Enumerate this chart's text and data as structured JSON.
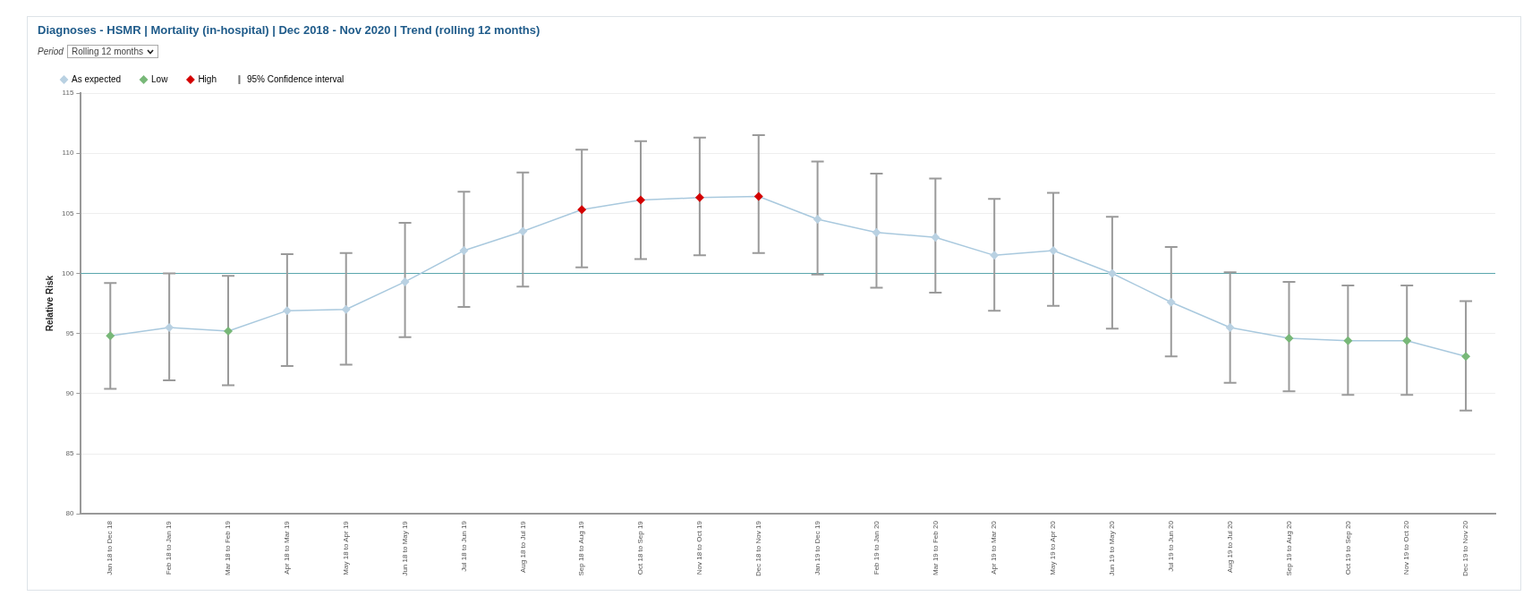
{
  "chart_data": {
    "type": "line",
    "title": "Diagnoses - HSMR | Mortality (in-hospital) | Dec 2018 - Nov 2020 | Trend (rolling 12 months)",
    "ylabel": "Relative Risk",
    "categories": [
      "Jan 18 to Dec 18",
      "Feb 18 to Jan 19",
      "Mar 18 to Feb 19",
      "Apr 18 to Mar 19",
      "May 18 to Apr 19",
      "Jun 18 to May 19",
      "Jul 18 to Jun 19",
      "Aug 18 to Jul 19",
      "Sep 18 to Aug 19",
      "Oct 18 to Sep 19",
      "Nov 18 to Oct 19",
      "Dec 18 to Nov 19",
      "Jan 19 to Dec 19",
      "Feb 19 to Jan 20",
      "Mar 19 to Feb 20",
      "Apr 19 to Mar 20",
      "May 19 to Apr 20",
      "Jun 19 to May 20",
      "Jul 19 to Jun 20",
      "Aug 19 to Jul 20",
      "Sep 19 to Aug 20",
      "Oct 19 to Sep 20",
      "Nov 19 to Oct 20",
      "Dec 19 to Nov 20"
    ],
    "series": [
      {
        "type": "line",
        "color": "#a9c9de",
        "marker": "none",
        "values": [
          94.8,
          95.5,
          95.2,
          96.9,
          97.0,
          99.3,
          101.9,
          103.5,
          105.3,
          106.1,
          106.3,
          106.4,
          104.5,
          103.4,
          103.0,
          101.5,
          101.9,
          100.0,
          97.6,
          95.5,
          94.6,
          94.4,
          94.4,
          93.1
        ],
        "errors": [
          [
            90.4,
            99.2
          ],
          [
            91.1,
            100.0
          ],
          [
            90.7,
            99.8
          ],
          [
            92.3,
            101.6
          ],
          [
            92.4,
            101.7
          ],
          [
            94.7,
            104.2
          ],
          [
            97.2,
            106.8
          ],
          [
            98.9,
            108.4
          ],
          [
            100.5,
            110.3
          ],
          [
            101.2,
            111.0
          ],
          [
            101.5,
            111.3
          ],
          [
            101.7,
            111.5
          ],
          [
            99.9,
            109.3
          ],
          [
            98.8,
            108.3
          ],
          [
            98.4,
            107.9
          ],
          [
            96.9,
            106.2
          ],
          [
            97.3,
            106.7
          ],
          [
            95.4,
            104.7
          ],
          [
            93.1,
            102.2
          ],
          [
            90.9,
            100.1
          ],
          [
            90.2,
            99.3
          ],
          [
            89.9,
            99.0
          ],
          [
            89.9,
            99.0
          ],
          [
            88.6,
            97.7
          ]
        ]
      },
      {
        "name": "As expected",
        "type": "scatter",
        "color": "#b9d1e2",
        "values": [
          null,
          95.5,
          null,
          96.9,
          97.0,
          99.3,
          101.9,
          103.5,
          null,
          null,
          null,
          null,
          104.5,
          103.4,
          103.0,
          101.5,
          101.9,
          100.0,
          97.6,
          95.5,
          null,
          null,
          null,
          null
        ]
      },
      {
        "name": "Low",
        "type": "scatter",
        "color": "#78b878",
        "values": [
          94.8,
          null,
          95.2,
          null,
          null,
          null,
          null,
          null,
          null,
          null,
          null,
          null,
          null,
          null,
          null,
          null,
          null,
          null,
          null,
          null,
          94.6,
          94.4,
          94.4,
          93.1
        ]
      },
      {
        "name": "High",
        "type": "scatter",
        "color": "#d40000",
        "values": [
          null,
          null,
          null,
          null,
          null,
          null,
          null,
          null,
          105.3,
          106.1,
          106.3,
          106.4,
          null,
          null,
          null,
          null,
          null,
          null,
          null,
          null,
          null,
          null,
          null,
          null
        ]
      }
    ],
    "marker": "diamond",
    "ylim": [
      80,
      115
    ],
    "yticks": [
      80,
      85,
      90,
      95,
      100,
      105,
      110,
      115
    ],
    "grid": "y",
    "legend": "top left",
    "ref_lines": [
      {
        "axis": "y",
        "value": 100,
        "color": "#5aa6ad"
      }
    ],
    "annotations": [
      "Period",
      "Rolling 12 months",
      "95% Confidence interval"
    ]
  }
}
